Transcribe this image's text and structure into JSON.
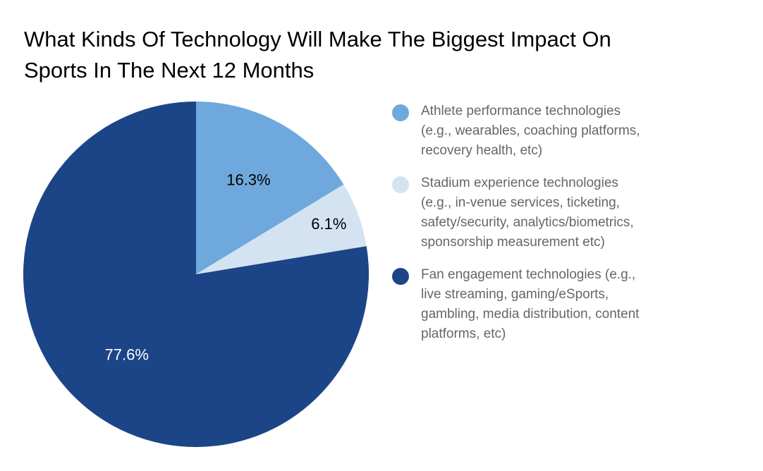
{
  "chart_data": {
    "type": "pie",
    "title_lines": [
      "What Kinds Of Technology Will Make The Biggest Impact On",
      "Sports In The Next 12 Months"
    ],
    "slices": [
      {
        "label_lines": [
          "Athlete performance technologies",
          "(e.g., wearables, coaching platforms,",
          "recovery health, etc)"
        ],
        "value": 16.3,
        "display": "16.3%",
        "color": "#6fa8dc",
        "text_color": "#000000"
      },
      {
        "label_lines": [
          "Stadium experience technologies",
          "(e.g., in-venue services, ticketing,",
          "safety/security, analytics/biometrics,",
          "sponsorship measurement etc)"
        ],
        "value": 6.1,
        "display": "6.1%",
        "color": "#d4e3f1",
        "text_color": "#000000"
      },
      {
        "label_lines": [
          "Fan engagement technologies (e.g.,",
          "live streaming, gaming/eSports,",
          "gambling, media distribution, content",
          "platforms, etc)"
        ],
        "value": 77.6,
        "display": "77.6%",
        "color": "#1c4587",
        "text_color": "#ffffff"
      }
    ],
    "legend_position": "right"
  }
}
